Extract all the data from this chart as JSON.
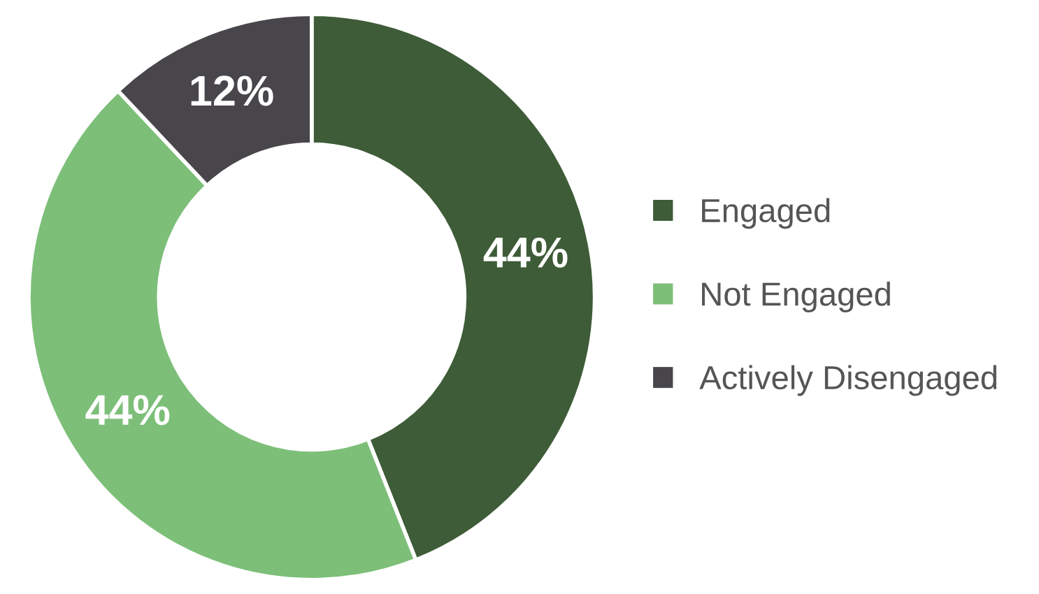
{
  "chart_data": {
    "type": "donut",
    "categories": [
      "Engaged",
      "Not Engaged",
      "Actively Disengaged"
    ],
    "values": [
      44,
      44,
      12
    ],
    "colors": [
      "#3e5c37",
      "#7dbf79",
      "#48464a"
    ],
    "value_labels": [
      "44%",
      "44%",
      "12%"
    ],
    "legend": "right"
  }
}
